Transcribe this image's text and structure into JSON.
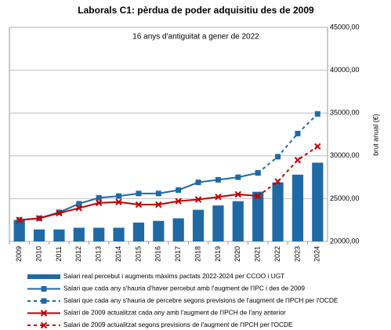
{
  "chart_data": {
    "type": "bar-line",
    "title": "Laborals C1: pèrdua de poder adquisitiu des de 2009",
    "annotation": "16 anys d'antiguitat a gener de 2022",
    "y_label": "brut anual (€)",
    "categories": [
      "2009",
      "2010",
      "2011",
      "2012",
      "2013",
      "2014",
      "2015",
      "2016",
      "2017",
      "2018",
      "2019",
      "2020",
      "2021",
      "2022",
      "2023",
      "2024"
    ],
    "ylim": [
      20000,
      45000
    ],
    "yticks": [
      {
        "value": 20000,
        "label": "20000,00"
      },
      {
        "value": 25000,
        "label": "25000,00"
      },
      {
        "value": 30000,
        "label": "30000,00"
      },
      {
        "value": 35000,
        "label": "35000,00"
      },
      {
        "value": 40000,
        "label": "40000,00"
      },
      {
        "value": 45000,
        "label": "45000,00"
      }
    ],
    "grid": true,
    "series": [
      {
        "name": "Salari real percebut i augments màxims pactats 2022-2024 per CCOO i UGT",
        "kind": "bar",
        "color": "#1f6aa5",
        "values": [
          22500,
          21400,
          21400,
          21600,
          21600,
          21600,
          22200,
          22400,
          22700,
          23700,
          24200,
          24700,
          25800,
          26900,
          27800,
          29200
        ]
      },
      {
        "name": "Salari que cada any s'hauria d'haver percebut amb l'augment de l'IPC i des de 2009",
        "kind": "line",
        "marker": "square",
        "dashed": false,
        "color": "#1f6aa5",
        "values": [
          22500,
          22700,
          23400,
          24400,
          25100,
          25300,
          25600,
          25600,
          26000,
          26900,
          27200,
          27500,
          28000,
          null,
          null,
          null
        ]
      },
      {
        "name": "Salari que cada any s'hauria de percebre segons previsions de l'augment de l'IPCH per l'OCDE",
        "kind": "line",
        "marker": "square",
        "dashed": true,
        "color": "#1f6aa5",
        "values": [
          null,
          null,
          null,
          null,
          null,
          null,
          null,
          null,
          null,
          null,
          null,
          null,
          28000,
          29900,
          32600,
          34900
        ]
      },
      {
        "name": "Salari de 2009 actualitzat cada any amb l'augment de l'IPCH de l'any anterior",
        "kind": "line",
        "marker": "x",
        "dashed": false,
        "color": "#c00000",
        "values": [
          22500,
          22700,
          23300,
          23900,
          24500,
          24600,
          24300,
          24300,
          24700,
          24900,
          25200,
          25500,
          25300,
          null,
          null,
          null
        ]
      },
      {
        "name": "Salari de 2009 actualitzat segons previsions de l'augment de l'IPCH per l'OCDE",
        "kind": "line",
        "marker": "x",
        "dashed": true,
        "color": "#c00000",
        "values": [
          null,
          null,
          null,
          null,
          null,
          null,
          null,
          null,
          null,
          null,
          null,
          null,
          25300,
          27000,
          29500,
          31100
        ]
      }
    ]
  }
}
